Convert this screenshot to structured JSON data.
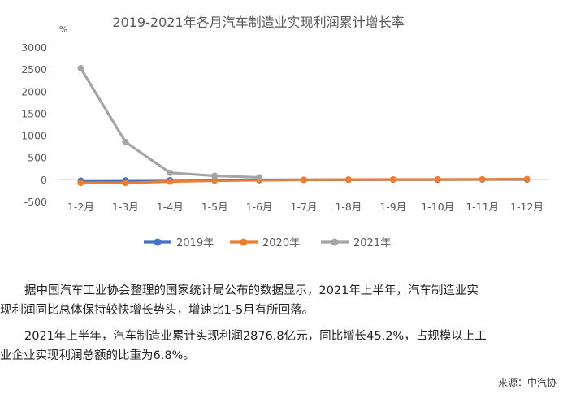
{
  "chart_data": {
    "type": "line",
    "title": "2019-2021年各月汽车制造业实现利润累计增长率",
    "unit": "%",
    "categories": [
      "1-2月",
      "1-3月",
      "1-4月",
      "1-5月",
      "1-6月",
      "1-7月",
      "1-8月",
      "1-9月",
      "1-10月",
      "1-11月",
      "1-12月"
    ],
    "ylim": [
      -500,
      3000
    ],
    "yticks": [
      -500,
      0,
      500,
      1000,
      1500,
      2000,
      2500,
      3000
    ],
    "legend_position": "bottom",
    "series": [
      {
        "name": "2019年",
        "color": "#4472C4",
        "values": [
          -30,
          -25,
          -20,
          -15,
          -12,
          -10,
          -8,
          -6,
          -5,
          -4,
          -3
        ]
      },
      {
        "name": "2020年",
        "color": "#ED7D31",
        "values": [
          -80,
          -80,
          -50,
          -30,
          -20,
          -10,
          -5,
          -3,
          -2,
          0,
          5
        ]
      },
      {
        "name": "2021年",
        "color": "#A5A5A5",
        "values": [
          2520,
          850,
          150,
          80,
          45,
          null,
          null,
          null,
          null,
          null,
          null
        ]
      }
    ]
  },
  "text": {
    "p1_line1": "据中国汽车工业协会整理的国家统计局公布的数据显示，2021年上半年，汽车制造业实",
    "p1_line2": "现利润同比总体保持较快增长势头，增速比1-5月有所回落。",
    "p2_line1": "2021年上半年，汽车制造业累计实现利润2876.8亿元，同比增长45.2%，占规模以上工",
    "p2_line2": "业企业实现利润总额的比重为6.8%。",
    "source": "来源：中汽协"
  }
}
